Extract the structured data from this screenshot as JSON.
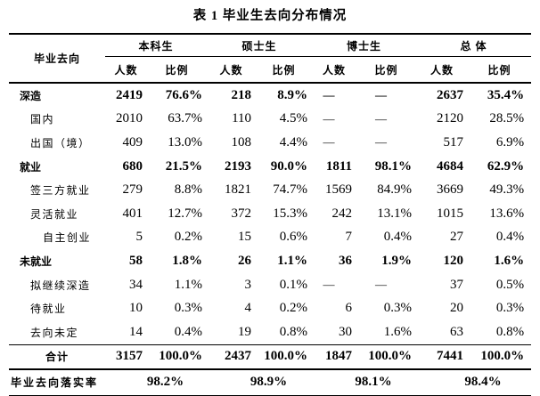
{
  "title": "表 1 毕业生去向分布情况",
  "table": {
    "first_col_header": "毕业去向",
    "groups": [
      "本科生",
      "硕士生",
      "博士生",
      "总  体"
    ],
    "subheaders": [
      "人数",
      "比例"
    ],
    "rows": [
      {
        "label": "深造",
        "indent": 0,
        "bold": true,
        "values": [
          "2419",
          "76.6%",
          "218",
          "8.9%",
          "—",
          "—",
          "2637",
          "35.4%"
        ]
      },
      {
        "label": "国内",
        "indent": 1,
        "bold": false,
        "values": [
          "2010",
          "63.7%",
          "110",
          "4.5%",
          "—",
          "—",
          "2120",
          "28.5%"
        ]
      },
      {
        "label": "出国（境）",
        "indent": 1,
        "bold": false,
        "values": [
          "409",
          "13.0%",
          "108",
          "4.4%",
          "—",
          "—",
          "517",
          "6.9%"
        ]
      },
      {
        "label": "就业",
        "indent": 0,
        "bold": true,
        "values": [
          "680",
          "21.5%",
          "2193",
          "90.0%",
          "1811",
          "98.1%",
          "4684",
          "62.9%"
        ]
      },
      {
        "label": "签三方就业",
        "indent": 1,
        "bold": false,
        "values": [
          "279",
          "8.8%",
          "1821",
          "74.7%",
          "1569",
          "84.9%",
          "3669",
          "49.3%"
        ]
      },
      {
        "label": "灵活就业",
        "indent": 1,
        "bold": false,
        "values": [
          "401",
          "12.7%",
          "372",
          "15.3%",
          "242",
          "13.1%",
          "1015",
          "13.6%"
        ]
      },
      {
        "label": "自主创业",
        "indent": 2,
        "bold": false,
        "values": [
          "5",
          "0.2%",
          "15",
          "0.6%",
          "7",
          "0.4%",
          "27",
          "0.4%"
        ]
      },
      {
        "label": "未就业",
        "indent": 0,
        "bold": true,
        "values": [
          "58",
          "1.8%",
          "26",
          "1.1%",
          "36",
          "1.9%",
          "120",
          "1.6%"
        ]
      },
      {
        "label": "拟继续深造",
        "indent": 1,
        "bold": false,
        "values": [
          "34",
          "1.1%",
          "3",
          "0.1%",
          "—",
          "—",
          "37",
          "0.5%"
        ]
      },
      {
        "label": "待就业",
        "indent": 1,
        "bold": false,
        "values": [
          "10",
          "0.3%",
          "4",
          "0.2%",
          "6",
          "0.3%",
          "20",
          "0.3%"
        ]
      },
      {
        "label": "去向未定",
        "indent": 1,
        "bold": false,
        "values": [
          "14",
          "0.4%",
          "19",
          "0.8%",
          "30",
          "1.6%",
          "63",
          "0.8%"
        ]
      }
    ],
    "total_row": {
      "label": "合计",
      "values": [
        "3157",
        "100.0%",
        "2437",
        "100.0%",
        "1847",
        "100.0%",
        "7441",
        "100.0%"
      ]
    },
    "rate_row": {
      "label": "毕业去向落实率",
      "values": [
        "98.2%",
        "98.9%",
        "98.1%",
        "98.4%"
      ]
    }
  },
  "chart_data": {
    "type": "table",
    "title": "表 1 毕业生去向分布情况",
    "columns": [
      "毕业去向",
      "本科生 人数",
      "本科生 比例",
      "硕士生 人数",
      "硕士生 比例",
      "博士生 人数",
      "博士生 比例",
      "总体 人数",
      "总体 比例"
    ],
    "rows": [
      [
        "深造",
        2419,
        "76.6%",
        218,
        "8.9%",
        null,
        null,
        2637,
        "35.4%"
      ],
      [
        "国内",
        2010,
        "63.7%",
        110,
        "4.5%",
        null,
        null,
        2120,
        "28.5%"
      ],
      [
        "出国（境）",
        409,
        "13.0%",
        108,
        "4.4%",
        null,
        null,
        517,
        "6.9%"
      ],
      [
        "就业",
        680,
        "21.5%",
        2193,
        "90.0%",
        1811,
        "98.1%",
        4684,
        "62.9%"
      ],
      [
        "签三方就业",
        279,
        "8.8%",
        1821,
        "74.7%",
        1569,
        "84.9%",
        3669,
        "49.3%"
      ],
      [
        "灵活就业",
        401,
        "12.7%",
        372,
        "15.3%",
        242,
        "13.1%",
        1015,
        "13.6%"
      ],
      [
        "自主创业",
        5,
        "0.2%",
        15,
        "0.6%",
        7,
        "0.4%",
        27,
        "0.4%"
      ],
      [
        "未就业",
        58,
        "1.8%",
        26,
        "1.1%",
        36,
        "1.9%",
        120,
        "1.6%"
      ],
      [
        "拟继续深造",
        34,
        "1.1%",
        3,
        "0.1%",
        null,
        null,
        37,
        "0.5%"
      ],
      [
        "待就业",
        10,
        "0.3%",
        4,
        "0.2%",
        6,
        "0.3%",
        20,
        "0.3%"
      ],
      [
        "去向未定",
        14,
        "0.4%",
        19,
        "0.8%",
        30,
        "1.6%",
        63,
        "0.8%"
      ],
      [
        "合计",
        3157,
        "100.0%",
        2437,
        "100.0%",
        1847,
        "100.0%",
        7441,
        "100.0%"
      ],
      [
        "毕业去向落实率",
        "98.2%",
        "98.2%",
        "98.9%",
        "98.9%",
        "98.1%",
        "98.1%",
        "98.4%",
        "98.4%"
      ]
    ]
  }
}
